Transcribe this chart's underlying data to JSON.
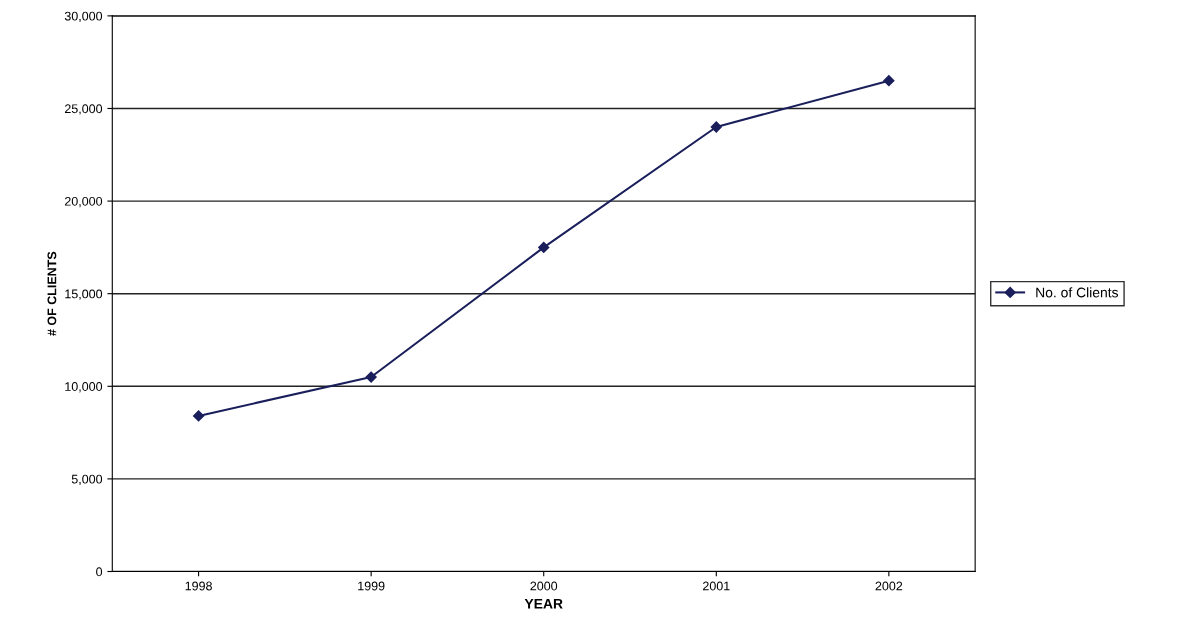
{
  "chart_data": {
    "type": "line",
    "xlabel": "YEAR",
    "ylabel": "# OF CLIENTS",
    "categories": [
      "1998",
      "1999",
      "2000",
      "2001",
      "2002"
    ],
    "series": [
      {
        "name": "No. of Clients",
        "color": "#1a1f5c",
        "values": [
          8400,
          10500,
          17500,
          24000,
          26500
        ]
      }
    ],
    "ylim": [
      0,
      30000
    ],
    "yticks": [
      {
        "value": 0,
        "label": "0"
      },
      {
        "value": 5000,
        "label": "5,000"
      },
      {
        "value": 10000,
        "label": "10,000"
      },
      {
        "value": 15000,
        "label": "15,000"
      },
      {
        "value": 20000,
        "label": "20,000"
      },
      {
        "value": 25000,
        "label": "25,000"
      },
      {
        "value": 30000,
        "label": "30,000"
      }
    ],
    "grid": "y",
    "legend": "right",
    "marker": "diamond",
    "line_style": "solid"
  }
}
